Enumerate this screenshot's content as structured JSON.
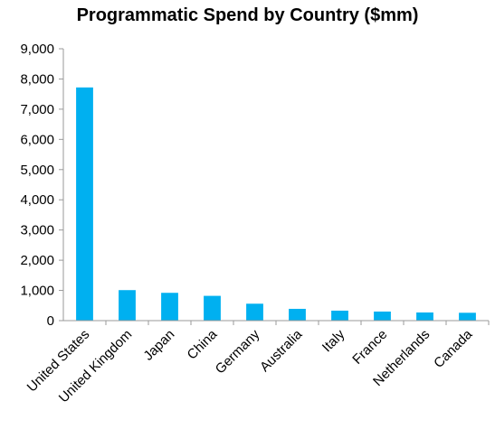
{
  "chart_data": {
    "type": "bar",
    "title": "Programmatic Spend by Country ($mm)",
    "xlabel": "",
    "ylabel": "",
    "categories": [
      "United States",
      "United Kingdom",
      "Japan",
      "China",
      "Germany",
      "Australia",
      "Italy",
      "France",
      "Netherlands",
      "Canada"
    ],
    "values": [
      7720,
      1010,
      920,
      820,
      560,
      390,
      330,
      300,
      270,
      260
    ],
    "ylim": [
      0,
      9000
    ],
    "yticks": [
      "0",
      "1,000",
      "2,000",
      "3,000",
      "4,000",
      "5,000",
      "6,000",
      "7,000",
      "8,000",
      "9,000"
    ],
    "grid": false,
    "legend": "none",
    "bar_color": "#00b0f0",
    "axis_color": "#999999"
  }
}
